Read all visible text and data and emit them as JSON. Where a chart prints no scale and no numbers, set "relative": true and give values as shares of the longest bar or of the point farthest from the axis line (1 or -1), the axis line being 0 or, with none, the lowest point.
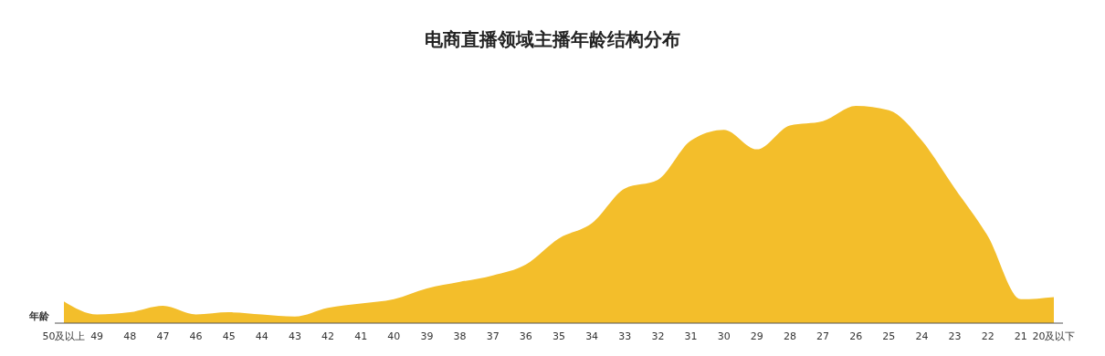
{
  "chart_data": {
    "type": "area",
    "title": "电商直播领域主播年龄结构分布",
    "xlabel": "年龄",
    "relative": true,
    "categories": [
      "50及以上",
      "49",
      "48",
      "47",
      "46",
      "45",
      "44",
      "43",
      "42",
      "41",
      "40",
      "39",
      "38",
      "37",
      "36",
      "35",
      "34",
      "33",
      "32",
      "31",
      "30",
      "29",
      "28",
      "27",
      "26",
      "25",
      "24",
      "23",
      "22",
      "21",
      "20及以下"
    ],
    "series": [
      {
        "color": "#f3be2b",
        "values": [
          0.1,
          0.04,
          0.05,
          0.08,
          0.04,
          0.05,
          0.04,
          0.03,
          0.07,
          0.09,
          0.11,
          0.16,
          0.19,
          0.22,
          0.27,
          0.39,
          0.46,
          0.62,
          0.66,
          0.84,
          0.89,
          0.8,
          0.91,
          0.93,
          1.0,
          0.98,
          0.84,
          0.62,
          0.4,
          0.11,
          0.12
        ]
      }
    ]
  }
}
